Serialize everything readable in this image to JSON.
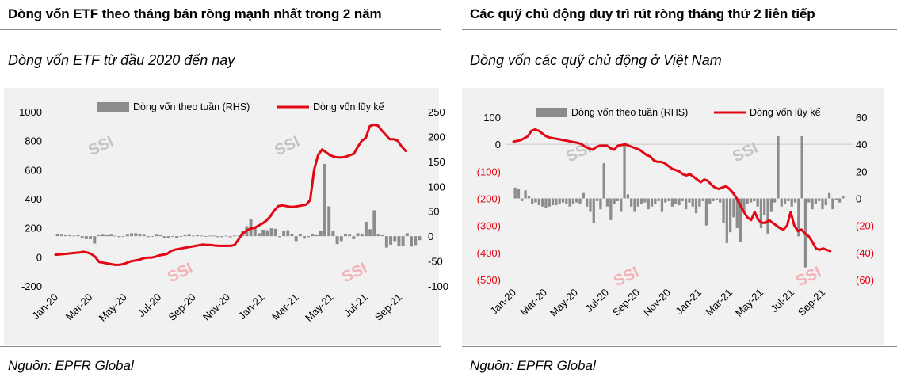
{
  "left": {
    "title": "Dòng vốn ETF theo tháng bán ròng mạnh nhất trong 2 năm",
    "subtitle": "Dòng vốn ETF từ đầu 2020 đến nay",
    "source": "Nguồn: EPFR Global"
  },
  "right": {
    "title": "Các quỹ chủ động duy trì rút ròng tháng thứ 2 liên tiếp",
    "subtitle": "Dòng vốn các quỹ chủ động ở Việt Nam",
    "source": "Nguồn: EPFR Global"
  },
  "watermark": "SSI",
  "colors": {
    "line": "#e30613",
    "bar": "#8c8c8c",
    "negative_label": "#e30613",
    "plot_bg": "#f1f1f1",
    "rule": "#8a8a8a"
  },
  "chart_data": [
    {
      "type": "bar+line",
      "title": "Dòng vốn ETF từ đầu 2020 đến nay",
      "legend": [
        "Dòng vốn theo tuần (RHS)",
        "Dòng vốn lũy kế"
      ],
      "legend_position": "top",
      "x_tick_labels": [
        "Jan-20",
        "Mar-20",
        "May-20",
        "Jul-20",
        "Sep-20",
        "Nov-20",
        "Jan-21",
        "Mar-21",
        "May-21",
        "Jul-21",
        "Sep-21"
      ],
      "y_left": {
        "range": [
          -200,
          1000
        ],
        "ticks": [
          -200,
          0,
          200,
          400,
          600,
          800,
          1000
        ],
        "tick_labels": [
          "-200",
          "0",
          "200",
          "400",
          "600",
          "800",
          "1000"
        ]
      },
      "y_right": {
        "range": [
          -100,
          250
        ],
        "ticks": [
          -100,
          -50,
          0,
          50,
          100,
          150,
          200,
          250
        ],
        "tick_labels": [
          "-100",
          "-50",
          "0",
          "50",
          "100",
          "150",
          "200",
          "250"
        ]
      },
      "x_range": [
        0,
        92
      ],
      "series": [
        {
          "name": "Dòng vốn lũy kế",
          "axis": "left",
          "kind": "line",
          "points": [
            [
              0,
              15
            ],
            [
              2,
              20
            ],
            [
              4,
              25
            ],
            [
              6,
              30
            ],
            [
              7,
              35
            ],
            [
              8,
              30
            ],
            [
              9,
              20
            ],
            [
              10,
              0
            ],
            [
              11,
              -35
            ],
            [
              12,
              -40
            ],
            [
              13,
              -45
            ],
            [
              14,
              -50
            ],
            [
              15,
              -55
            ],
            [
              16,
              -55
            ],
            [
              17,
              -50
            ],
            [
              18,
              -40
            ],
            [
              19,
              -30
            ],
            [
              20,
              -25
            ],
            [
              21,
              -20
            ],
            [
              22,
              -10
            ],
            [
              23,
              -5
            ],
            [
              24,
              -5
            ],
            [
              25,
              0
            ],
            [
              26,
              10
            ],
            [
              27,
              15
            ],
            [
              28,
              20
            ],
            [
              29,
              40
            ],
            [
              30,
              50
            ],
            [
              31,
              55
            ],
            [
              32,
              60
            ],
            [
              33,
              65
            ],
            [
              34,
              70
            ],
            [
              35,
              75
            ],
            [
              36,
              80
            ],
            [
              37,
              85
            ],
            [
              38,
              82
            ],
            [
              39,
              82
            ],
            [
              40,
              78
            ],
            [
              41,
              76
            ],
            [
              42,
              76
            ],
            [
              43,
              76
            ],
            [
              44,
              76
            ],
            [
              45,
              82
            ],
            [
              46,
              120
            ],
            [
              47,
              160
            ],
            [
              48,
              180
            ],
            [
              49,
              195
            ],
            [
              50,
              200
            ],
            [
              51,
              215
            ],
            [
              52,
              230
            ],
            [
              53,
              250
            ],
            [
              54,
              280
            ],
            [
              55,
              320
            ],
            [
              56,
              350
            ],
            [
              57,
              355
            ],
            [
              58,
              350
            ],
            [
              59,
              345
            ],
            [
              60,
              345
            ],
            [
              61,
              350
            ],
            [
              62,
              355
            ],
            [
              63,
              360
            ],
            [
              64,
              390
            ],
            [
              65,
              600
            ],
            [
              66,
              700
            ],
            [
              67,
              740
            ],
            [
              68,
              720
            ],
            [
              69,
              700
            ],
            [
              70,
              690
            ],
            [
              71,
              685
            ],
            [
              72,
              685
            ],
            [
              73,
              690
            ],
            [
              74,
              700
            ],
            [
              75,
              710
            ],
            [
              76,
              760
            ],
            [
              77,
              800
            ],
            [
              78,
              820
            ],
            [
              79,
              900
            ],
            [
              80,
              910
            ],
            [
              81,
              905
            ],
            [
              82,
              870
            ],
            [
              83,
              840
            ],
            [
              84,
              810
            ],
            [
              85,
              810
            ],
            [
              86,
              800
            ],
            [
              87,
              760
            ],
            [
              88,
              730
            ]
          ]
        },
        {
          "name": "Dòng vốn theo tuần (RHS)",
          "axis": "right",
          "kind": "bar",
          "values": [
            4,
            3,
            2,
            2,
            1,
            2,
            -3,
            -6,
            -6,
            -15,
            2,
            3,
            2,
            3,
            1,
            -2,
            -1,
            3,
            6,
            6,
            4,
            3,
            -2,
            -1,
            3,
            2,
            -4,
            -3,
            -1,
            -3,
            0,
            2,
            3,
            1,
            2,
            1,
            0,
            1,
            1,
            -2,
            -2,
            1,
            -2,
            1,
            1,
            11,
            20,
            35,
            18,
            6,
            13,
            12,
            16,
            15,
            -2,
            10,
            12,
            5,
            -10,
            4,
            -5,
            -2,
            4,
            2,
            10,
            145,
            60,
            10,
            -16,
            -10,
            4,
            3,
            -6,
            6,
            5,
            29,
            14,
            52,
            4,
            2,
            -23,
            -17,
            -10,
            -20,
            -20,
            6,
            -21,
            -18,
            -8
          ]
        }
      ]
    },
    {
      "type": "bar+line",
      "title": "Dòng vốn các quỹ chủ động ở Việt Nam",
      "legend": [
        "Dòng vốn theo tuần (RHS)",
        "Dòng vốn lũy kế"
      ],
      "legend_position": "top",
      "x_tick_labels": [
        "Jan-20",
        "Mar-20",
        "May-20",
        "Jul-20",
        "Sep-20",
        "Nov-20",
        "Jan-21",
        "Mar-21",
        "May-21",
        "Jul-21",
        "Sep-21"
      ],
      "y_left": {
        "range": [
          -500,
          100
        ],
        "ticks": [
          -500,
          -400,
          -300,
          -200,
          -100,
          0,
          100
        ],
        "tick_labels": [
          "(500)",
          "(400)",
          "(300)",
          "(200)",
          "(100)",
          "0",
          "100"
        ],
        "negative_in_red": true
      },
      "y_right": {
        "range": [
          -60,
          60
        ],
        "ticks": [
          -60,
          -40,
          -20,
          0,
          20,
          40,
          60
        ],
        "tick_labels": [
          "(60)",
          "(40)",
          "(20)",
          "0",
          "20",
          "40",
          "60"
        ],
        "negative_in_red": true
      },
      "x_range": [
        0,
        92
      ],
      "series": [
        {
          "name": "Dòng vốn lũy kế",
          "axis": "left",
          "kind": "line",
          "points": [
            [
              0,
              10
            ],
            [
              2,
              15
            ],
            [
              4,
              30
            ],
            [
              5,
              50
            ],
            [
              6,
              55
            ],
            [
              7,
              50
            ],
            [
              8,
              40
            ],
            [
              9,
              30
            ],
            [
              10,
              25
            ],
            [
              12,
              20
            ],
            [
              14,
              15
            ],
            [
              16,
              10
            ],
            [
              18,
              5
            ],
            [
              19,
              0
            ],
            [
              20,
              -10
            ],
            [
              21,
              -15
            ],
            [
              22,
              -20
            ],
            [
              23,
              -10
            ],
            [
              24,
              -5
            ],
            [
              25,
              -5
            ],
            [
              26,
              -5
            ],
            [
              27,
              -15
            ],
            [
              28,
              -20
            ],
            [
              29,
              -5
            ],
            [
              30,
              -3
            ],
            [
              31,
              0
            ],
            [
              32,
              -5
            ],
            [
              33,
              -10
            ],
            [
              34,
              -15
            ],
            [
              35,
              -20
            ],
            [
              36,
              -30
            ],
            [
              37,
              -40
            ],
            [
              38,
              -45
            ],
            [
              39,
              -60
            ],
            [
              40,
              -65
            ],
            [
              41,
              -65
            ],
            [
              42,
              -70
            ],
            [
              43,
              -80
            ],
            [
              44,
              -90
            ],
            [
              45,
              -95
            ],
            [
              46,
              -100
            ],
            [
              47,
              -110
            ],
            [
              48,
              -115
            ],
            [
              49,
              -110
            ],
            [
              50,
              -120
            ],
            [
              51,
              -130
            ],
            [
              52,
              -140
            ],
            [
              53,
              -130
            ],
            [
              54,
              -135
            ],
            [
              55,
              -150
            ],
            [
              56,
              -160
            ],
            [
              57,
              -165
            ],
            [
              58,
              -160
            ],
            [
              59,
              -155
            ],
            [
              60,
              -165
            ],
            [
              61,
              -180
            ],
            [
              62,
              -200
            ],
            [
              63,
              -225
            ],
            [
              64,
              -250
            ],
            [
              65,
              -270
            ],
            [
              66,
              -280
            ],
            [
              67,
              -250
            ],
            [
              68,
              -280
            ],
            [
              69,
              -290
            ],
            [
              70,
              -290
            ],
            [
              71,
              -280
            ],
            [
              72,
              -290
            ],
            [
              73,
              -300
            ],
            [
              74,
              -310
            ],
            [
              75,
              -315
            ],
            [
              76,
              -300
            ],
            [
              77,
              -250
            ],
            [
              78,
              -300
            ],
            [
              79,
              -320
            ],
            [
              80,
              -315
            ],
            [
              81,
              -330
            ],
            [
              82,
              -340
            ],
            [
              83,
              -360
            ],
            [
              84,
              -385
            ],
            [
              85,
              -390
            ],
            [
              86,
              -385
            ],
            [
              87,
              -390
            ],
            [
              88,
              -395
            ]
          ]
        },
        {
          "name": "Dòng vốn theo tuần (RHS)",
          "axis": "right",
          "kind": "bar",
          "values": [
            8,
            7,
            -2,
            6,
            2,
            -4,
            -3,
            -5,
            -6,
            -7,
            -6,
            -5,
            -5,
            -4,
            -3,
            -4,
            -6,
            -4,
            -3,
            -4,
            4,
            -6,
            -10,
            -18,
            -2,
            -8,
            26,
            -6,
            -16,
            -4,
            -2,
            -10,
            40,
            3,
            -6,
            -10,
            -6,
            -4,
            -3,
            -8,
            -6,
            -4,
            -2,
            -10,
            -3,
            -2,
            -6,
            -4,
            -5,
            -2,
            -8,
            -3,
            -6,
            -11,
            -6,
            -2,
            -20,
            -4,
            -2,
            -1,
            -3,
            -18,
            -33,
            -25,
            -14,
            -22,
            -32,
            -10,
            -4,
            -3,
            -2,
            -6,
            -22,
            -12,
            -26,
            -10,
            -3,
            46,
            -6,
            -4,
            -2,
            -6,
            -3,
            -28,
            46,
            -51,
            -3,
            -8,
            -4,
            -2,
            -8,
            -5,
            4,
            -8,
            -1,
            -3,
            2
          ]
        }
      ]
    }
  ]
}
